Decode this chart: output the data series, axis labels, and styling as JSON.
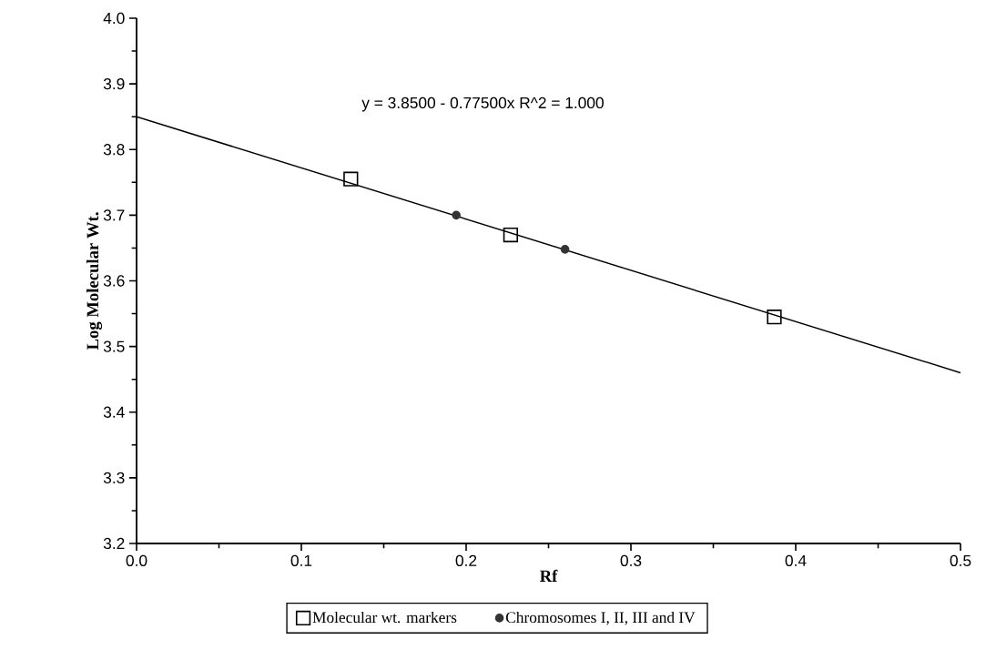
{
  "chart_data": {
    "type": "scatter",
    "xlabel": "Rf",
    "ylabel": "Log Molecular Wt.",
    "annotations": [
      "y = 3.8500 - 0.77500x    R^2 = 1.000"
    ],
    "series": [
      {
        "name": "Molecular wt. markers",
        "marker": "square",
        "color": "#000000",
        "x": [
          0.13,
          0.227,
          0.387
        ],
        "values": [
          3.755,
          3.67,
          3.545
        ]
      },
      {
        "name": "Chromosomes I, II, III and IV",
        "marker": "circle",
        "color": "#333333",
        "x": [
          0.194,
          0.26
        ],
        "values": [
          3.7,
          3.648
        ]
      },
      {
        "type": "line",
        "color": "#000000",
        "x": [
          0,
          0.5
        ],
        "values": [
          3.85,
          3.46
        ]
      }
    ],
    "xlim": [
      0,
      0.5
    ],
    "ylim": [
      3.2,
      4.0
    ],
    "xticks": [
      {
        "value": 0,
        "label": "0.0"
      },
      0.1,
      0.2,
      0.3,
      0.4,
      0.5
    ],
    "yticks": [
      3.2,
      3.3,
      3.4,
      3.5,
      3.6,
      3.7,
      3.8,
      3.9,
      {
        "value": 4,
        "label": "4.0"
      }
    ],
    "legend": "bottom",
    "grid": false
  }
}
